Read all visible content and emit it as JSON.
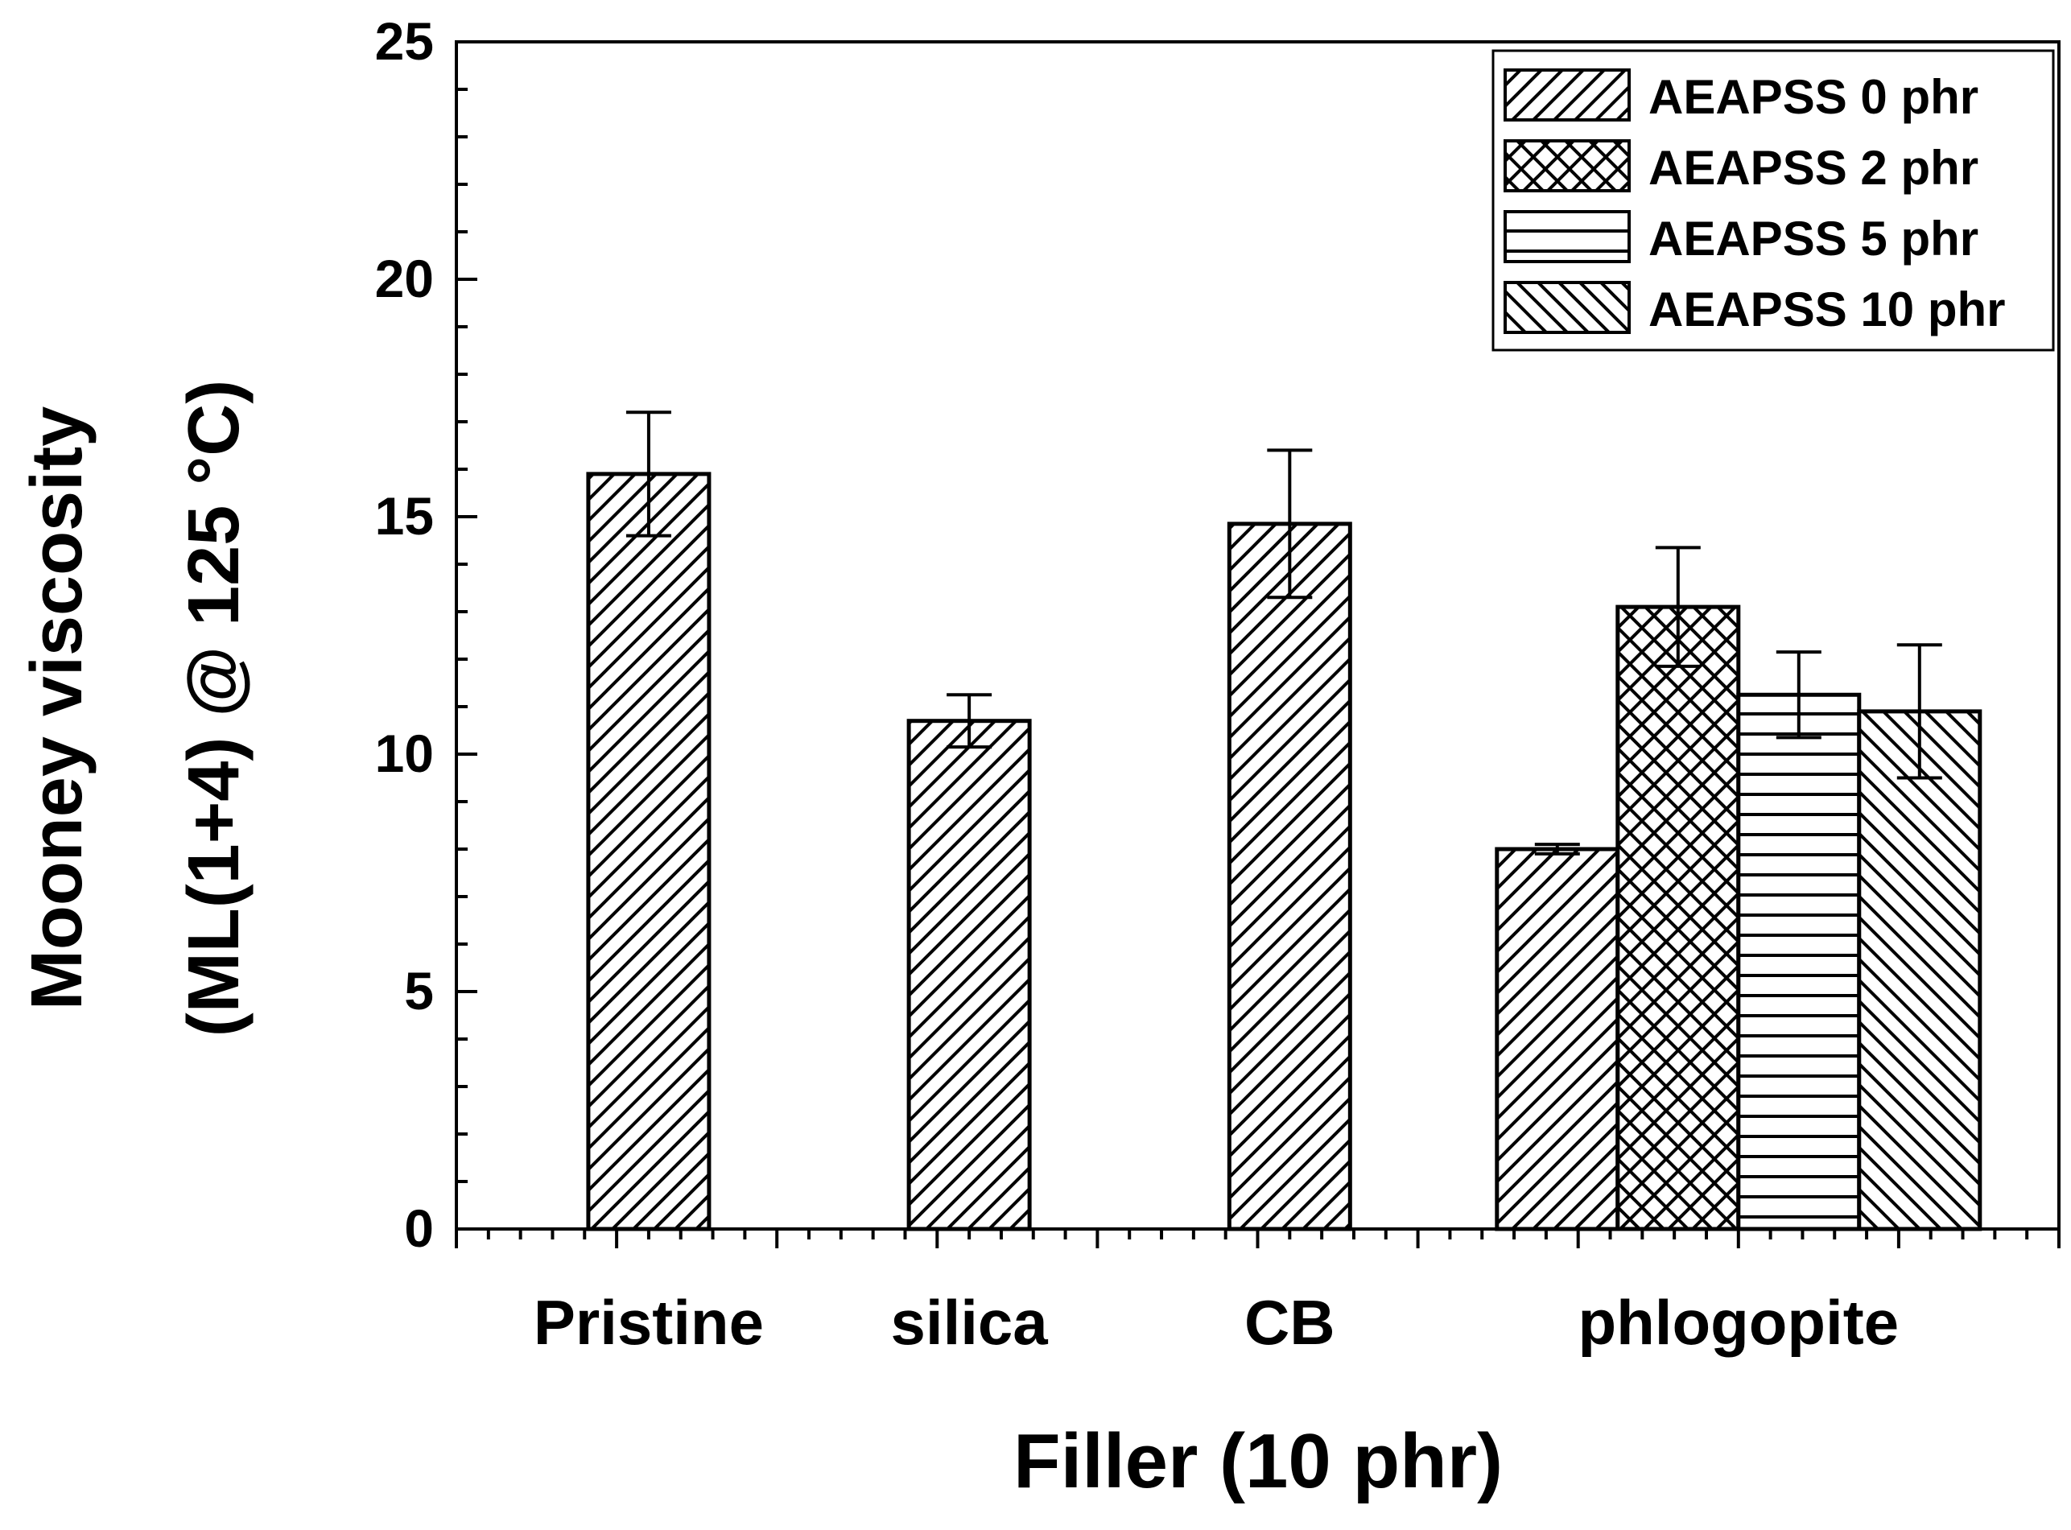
{
  "chart_data": {
    "type": "bar",
    "xlabel": "Filler (10 phr)",
    "ylabel_line1": "Mooney viscosity",
    "ylabel_line2": "(ML(1+4) @ 125 °C)",
    "ylim": [
      0,
      25
    ],
    "y_ticks": [
      "0",
      "5",
      "10",
      "15",
      "20",
      "25"
    ],
    "y_tick_values": [
      0,
      5,
      10,
      15,
      20,
      25
    ],
    "categories": [
      "Pristine",
      "silica",
      "CB",
      "phlogopite"
    ],
    "legend_position": "top-right",
    "series": [
      {
        "name": "AEAPSS 0 phr",
        "pattern": "diag-up"
      },
      {
        "name": "AEAPSS 2 phr",
        "pattern": "crosshatch"
      },
      {
        "name": "AEAPSS 5 phr",
        "pattern": "horizontal"
      },
      {
        "name": "AEAPSS 10 phr",
        "pattern": "diag-down"
      }
    ],
    "bars": [
      {
        "category": "Pristine",
        "series": "AEAPSS 0 phr",
        "value": 15.9,
        "error": 1.3
      },
      {
        "category": "silica",
        "series": "AEAPSS 0 phr",
        "value": 10.7,
        "error": 0.55
      },
      {
        "category": "CB",
        "series": "AEAPSS 0 phr",
        "value": 14.85,
        "error": 1.55
      },
      {
        "category": "phlogopite",
        "series": "AEAPSS 0 phr",
        "value": 8.0,
        "error": 0.1
      },
      {
        "category": "phlogopite",
        "series": "AEAPSS 2 phr",
        "value": 13.1,
        "error": 1.25
      },
      {
        "category": "phlogopite",
        "series": "AEAPSS 5 phr",
        "value": 11.25,
        "error": 0.9
      },
      {
        "category": "phlogopite",
        "series": "AEAPSS 10 phr",
        "value": 10.9,
        "error": 1.4
      }
    ]
  }
}
